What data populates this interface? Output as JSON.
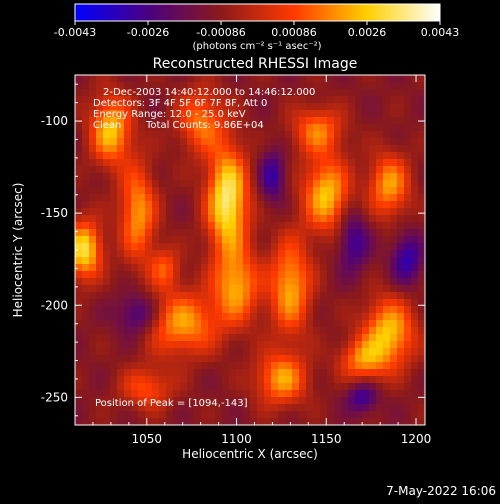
{
  "chart_data": {
    "type": "heatmap",
    "title": "Reconstructed RHESSI Image",
    "xlabel": "Heliocentric X (arcsec)",
    "ylabel": "Heliocentric Y (arcsec)",
    "xlim": [
      1010,
      1205
    ],
    "ylim": [
      -265,
      -75
    ],
    "x_ticks": [
      1050,
      1100,
      1150,
      1200
    ],
    "y_ticks": [
      -100,
      -150,
      -200,
      -250
    ],
    "colorbar": {
      "min": -0.0043,
      "max": 0.0043,
      "tick_labels": [
        "-0.0043",
        "-0.0026",
        "-0.00086",
        "0.00086",
        "0.0026",
        "0.0043"
      ],
      "unit_label": "(photons cm⁻² s⁻¹ asec⁻²)",
      "colors": [
        "#0000ff",
        "#4b0082",
        "#8b1a1a",
        "#ff3a00",
        "#ffd000",
        "#ffffff"
      ]
    },
    "annotations": {
      "time_range": "2-Dec-2003 14:40:12.000 to 14:46:12.000",
      "detectors": "Detectors: 3F 4F 5F 6F 7F 8F, Att 0",
      "energy_range": "Energy Range: 12.0 - 25.0 keV",
      "method": "Clean",
      "total_counts": "Total Counts: 9.86E+04",
      "peak_position": "Position of Peak = [1094,-143]"
    },
    "peak": {
      "x": 1094,
      "y": -143
    },
    "blobs": [
      {
        "x": 1095,
        "y": -143,
        "sx": 8,
        "sy": 20,
        "amp": 0.0045
      },
      {
        "x": 1100,
        "y": -190,
        "sx": 9,
        "sy": 14,
        "amp": 0.003
      },
      {
        "x": 1030,
        "y": -105,
        "sx": 8,
        "sy": 13,
        "amp": 0.0035
      },
      {
        "x": 1045,
        "y": -150,
        "sx": 7,
        "sy": 18,
        "amp": 0.003
      },
      {
        "x": 1070,
        "y": -210,
        "sx": 14,
        "sy": 12,
        "amp": 0.003
      },
      {
        "x": 1015,
        "y": -170,
        "sx": 7,
        "sy": 11,
        "amp": 0.004
      },
      {
        "x": 1130,
        "y": -190,
        "sx": 8,
        "sy": 18,
        "amp": 0.0032
      },
      {
        "x": 1150,
        "y": -140,
        "sx": 9,
        "sy": 14,
        "amp": 0.0035
      },
      {
        "x": 1185,
        "y": -135,
        "sx": 8,
        "sy": 12,
        "amp": 0.003
      },
      {
        "x": 1185,
        "y": -215,
        "sx": 10,
        "sy": 13,
        "amp": 0.0035
      },
      {
        "x": 1125,
        "y": -240,
        "sx": 10,
        "sy": 10,
        "amp": 0.003
      },
      {
        "x": 1170,
        "y": -230,
        "sx": 9,
        "sy": 8,
        "amp": 0.0025
      },
      {
        "x": 1080,
        "y": -100,
        "sx": 9,
        "sy": 12,
        "amp": 0.0025
      },
      {
        "x": 1145,
        "y": -105,
        "sx": 10,
        "sy": 9,
        "amp": 0.0025
      },
      {
        "x": 1050,
        "y": -245,
        "sx": 10,
        "sy": 8,
        "amp": 0.002
      },
      {
        "x": 1060,
        "y": -180,
        "sx": 6,
        "sy": 8,
        "amp": 0.002
      },
      {
        "x": 1120,
        "y": -130,
        "sx": 5,
        "sy": 10,
        "amp": -0.002
      },
      {
        "x": 1165,
        "y": -165,
        "sx": 6,
        "sy": 12,
        "amp": -0.002
      },
      {
        "x": 1195,
        "y": -175,
        "sx": 6,
        "sy": 10,
        "amp": -0.0022
      },
      {
        "x": 1045,
        "y": -205,
        "sx": 8,
        "sy": 8,
        "amp": -0.002
      },
      {
        "x": 1170,
        "y": -250,
        "sx": 6,
        "sy": 6,
        "amp": -0.002
      }
    ]
  },
  "footer": {
    "date_stamp": "7-May-2022 16:06"
  }
}
